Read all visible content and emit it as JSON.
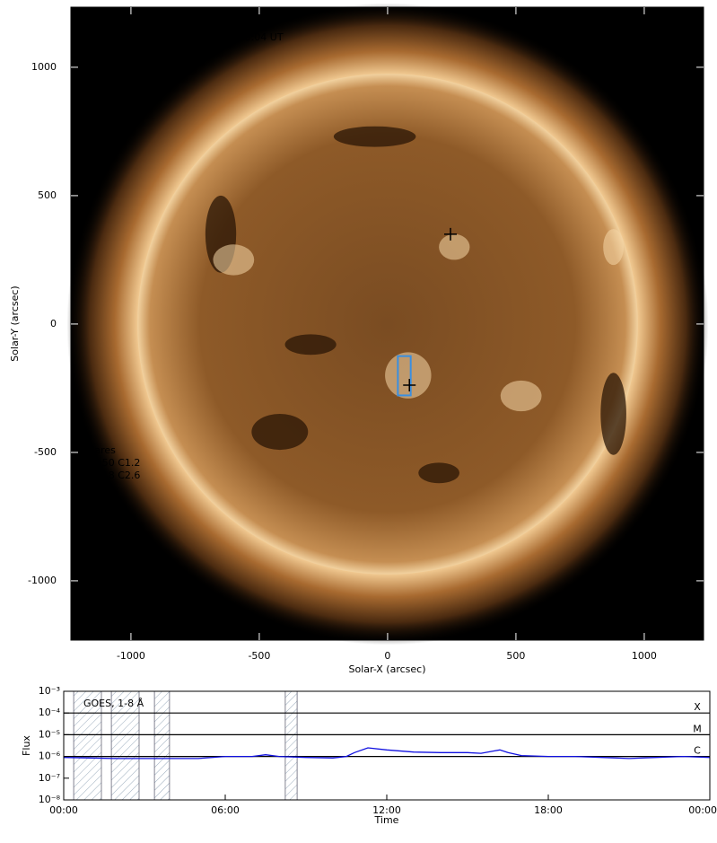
{
  "chart_data": [
    {
      "type": "image",
      "title": "AIA 0193, 9-Nov-2023, 12:00:04 UT",
      "xlabel": "Solar-X (arcsec)",
      "ylabel": "Solar-Y (arcsec)",
      "xlim": [
        -1234,
        1231
      ],
      "ylim": [
        -1231,
        1234
      ],
      "xticks": [
        -1000,
        -500,
        0,
        500,
        1000
      ],
      "yticks": [
        -1000,
        -500,
        0,
        500,
        1000
      ],
      "annotations": [
        "Flares",
        "10:50 C1.2",
        "11:18 C2.6"
      ],
      "markers": [
        {
          "x": 245,
          "y": 350
        },
        {
          "x": 85,
          "y": -238
        }
      ],
      "box": {
        "x": [
          40,
          90
        ],
        "y": [
          -278,
          -125
        ]
      },
      "box_color": "#3a8fe0"
    },
    {
      "type": "line",
      "xlabel": "Time",
      "ylabel": "Flux",
      "xlim": [
        0,
        24
      ],
      "ylim": [
        1e-08,
        0.001
      ],
      "ylog": true,
      "xticks": [
        {
          "value": 0,
          "label": "00:00"
        },
        {
          "value": 6,
          "label": "06:00"
        },
        {
          "value": 12,
          "label": "12:00"
        },
        {
          "value": 18,
          "label": "18:00"
        },
        {
          "value": 24,
          "label": "00:00"
        }
      ],
      "yticks": [
        {
          "value": 1e-08,
          "label": "10⁻⁸"
        },
        {
          "value": 1e-07,
          "label": "10⁻⁷"
        },
        {
          "value": 1e-06,
          "label": "10⁻⁶"
        },
        {
          "value": 1e-05,
          "label": "10⁻⁵"
        },
        {
          "value": 0.0001,
          "label": "10⁻⁴"
        },
        {
          "value": 0.001,
          "label": "10⁻³"
        }
      ],
      "levels": [
        {
          "value": 0.0001,
          "label": "X"
        },
        {
          "value": 1e-05,
          "label": "M"
        },
        {
          "value": 1e-06,
          "label": "C"
        }
      ],
      "shaded": [
        [
          0.37,
          1.4
        ],
        [
          1.77,
          2.8
        ],
        [
          3.37,
          3.93
        ],
        [
          8.23,
          8.67
        ]
      ],
      "x": [
        0,
        1,
        2,
        3,
        4,
        5,
        6,
        7,
        7.5,
        8,
        9,
        10,
        10.5,
        10.8,
        11.3,
        12,
        13,
        14,
        15,
        15.5,
        16,
        16.2,
        16.5,
        17,
        18,
        19,
        20,
        21,
        22,
        23,
        24
      ],
      "series": [
        {
          "name": "GOES, 1-8 Å",
          "color": "#1010e0",
          "values": [
            9e-07,
            8.5e-07,
            8e-07,
            8e-07,
            8e-07,
            8e-07,
            1e-06,
            1e-06,
            1.2e-06,
            1e-06,
            9e-07,
            8.5e-07,
            1e-06,
            1.5e-06,
            2.5e-06,
            2e-06,
            1.6e-06,
            1.5e-06,
            1.5e-06,
            1.4e-06,
            1.8e-06,
            2e-06,
            1.5e-06,
            1.1e-06,
            1e-06,
            1e-06,
            9e-07,
            8e-07,
            9e-07,
            1e-06,
            9e-07
          ]
        }
      ]
    }
  ]
}
